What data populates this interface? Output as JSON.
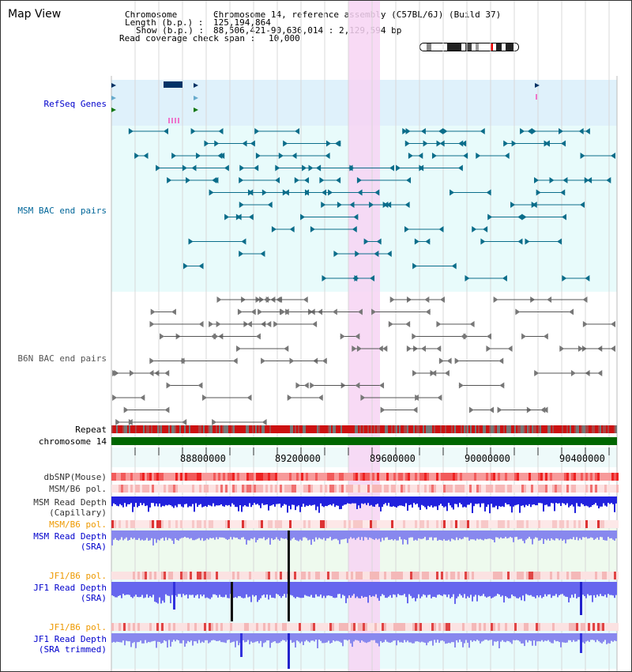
{
  "title": "Map View",
  "header": {
    "chromosome_key": "Chromosome       :",
    "chromosome_val": "Chromosome 14, reference assembly (C57BL/6J) (Build 37)",
    "length_key": "Length (b.p.) :",
    "length_val": "125,194,864",
    "show_key": "Show (b.p.) :",
    "show_val": "88,506,421-90,636,014 : 2,129,594 bp",
    "span_key": "Read coverage check span :",
    "span_val": "10,000"
  },
  "tracks": {
    "refseq": "RefSeq Genes",
    "msm_bac": "MSM BAC end pairs",
    "b6n_bac": "B6N BAC end pairs",
    "repeat": "Repeat",
    "chromosome": "chromosome 14",
    "dbsnp": "dbSNP(Mouse)",
    "msm_pol": "MSM/B6 pol.",
    "msm_depth_cap": "MSM Read Depth",
    "msm_depth_cap2": "(Capillary)",
    "msm_pol2": "MSM/B6 pol.",
    "msm_depth_sra": "MSM Read Depth",
    "msm_depth_sra2": "(SRA)",
    "jf1_pol": "JF1/B6 pol.",
    "jf1_depth_sra": "JF1 Read Depth",
    "jf1_depth_sra2": "(SRA)",
    "jf1_pol2": "JF1/B6 pol.",
    "jf1_depth_trim": "JF1 Read Depth",
    "jf1_depth_trim2": "(SRA trimmed)"
  },
  "axis_ticks": [
    "88800000",
    "89200000",
    "89600000",
    "90000000",
    "90400000"
  ],
  "colors": {
    "label_blue": "#0000cc",
    "label_teal": "#006699",
    "label_gray": "#555555",
    "label_orange": "#ee9900",
    "refseq_bg": "#dff1fb",
    "msm_bg": "#e8fbfb",
    "highlight": "#f7d3f3",
    "chromosome_green": "#006600"
  }
}
